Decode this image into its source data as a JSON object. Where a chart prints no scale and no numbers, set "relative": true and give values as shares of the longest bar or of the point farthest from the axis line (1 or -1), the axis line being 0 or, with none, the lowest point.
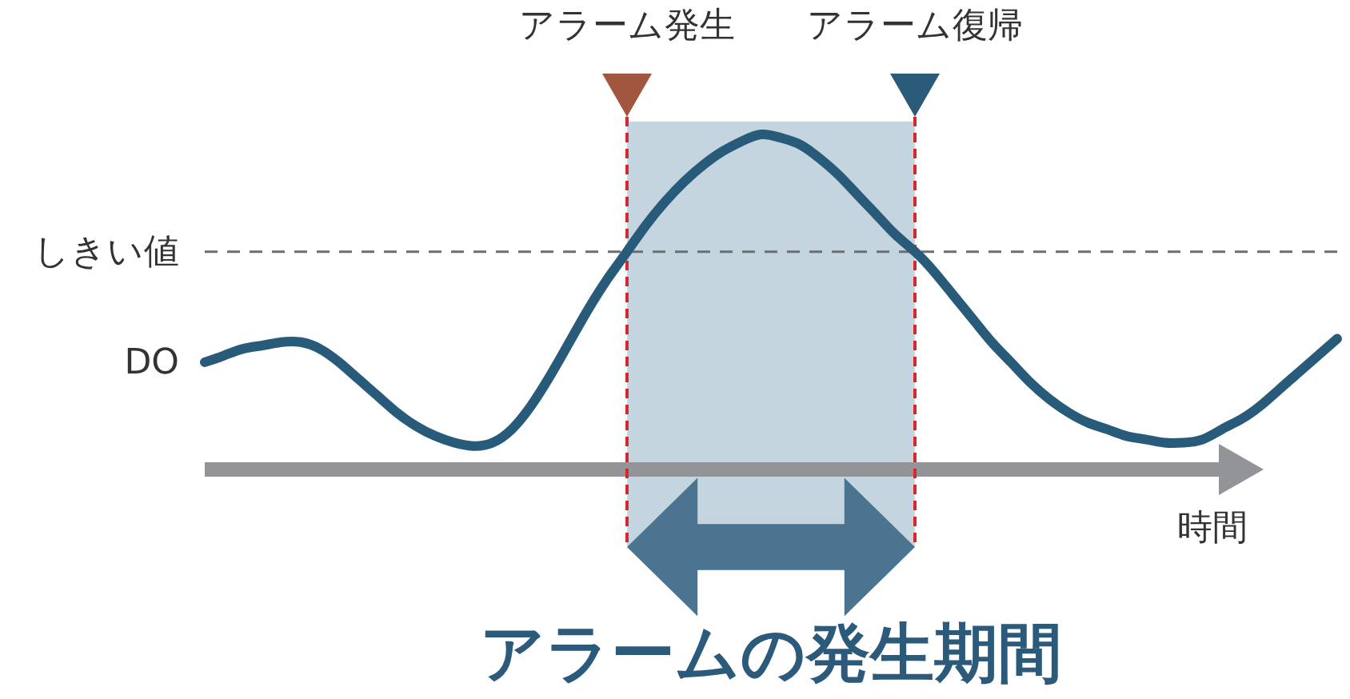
{
  "chart_data": {
    "type": "line",
    "relative": true,
    "categories": [
      null,
      null,
      null,
      null,
      null,
      null,
      null,
      null,
      null,
      null,
      null,
      null,
      null,
      null,
      null,
      null,
      null,
      null,
      null,
      null,
      null,
      null,
      null,
      null,
      null,
      null,
      null,
      null,
      null,
      null,
      null,
      null,
      null,
      null,
      null,
      null,
      null,
      null,
      null,
      null,
      null,
      null,
      null,
      null,
      null,
      null,
      null,
      null,
      null,
      null,
      null,
      null,
      null,
      null,
      null,
      null,
      null,
      null,
      null,
      null
    ],
    "series": [
      {
        "name": "DO",
        "color": "#275b79",
        "values": [
          0.32,
          0.34,
          0.36,
          0.37,
          0.38,
          0.38,
          0.36,
          0.32,
          0.27,
          0.22,
          0.17,
          0.13,
          0.1,
          0.08,
          0.07,
          0.08,
          0.12,
          0.19,
          0.28,
          0.38,
          0.48,
          0.57,
          0.65,
          0.73,
          0.8,
          0.86,
          0.91,
          0.95,
          0.98,
          1.0,
          0.99,
          0.97,
          0.93,
          0.88,
          0.82,
          0.76,
          0.7,
          0.65,
          0.59,
          0.52,
          0.45,
          0.38,
          0.32,
          0.26,
          0.21,
          0.17,
          0.14,
          0.12,
          0.1,
          0.09,
          0.08,
          0.08,
          0.09,
          0.12,
          0.15,
          0.19,
          0.24,
          0.29,
          0.34,
          0.39
        ]
      }
    ],
    "xlabel": "時間",
    "ref_lines": [
      {
        "axis": "y",
        "value": 0.65,
        "label": "しきい値",
        "color": "#6e6e6e",
        "line_style": "dashed"
      }
    ],
    "annotations": [
      "アラーム発生",
      "アラーム復帰",
      "アラームの発生期間"
    ],
    "line_style": "solid"
  }
}
